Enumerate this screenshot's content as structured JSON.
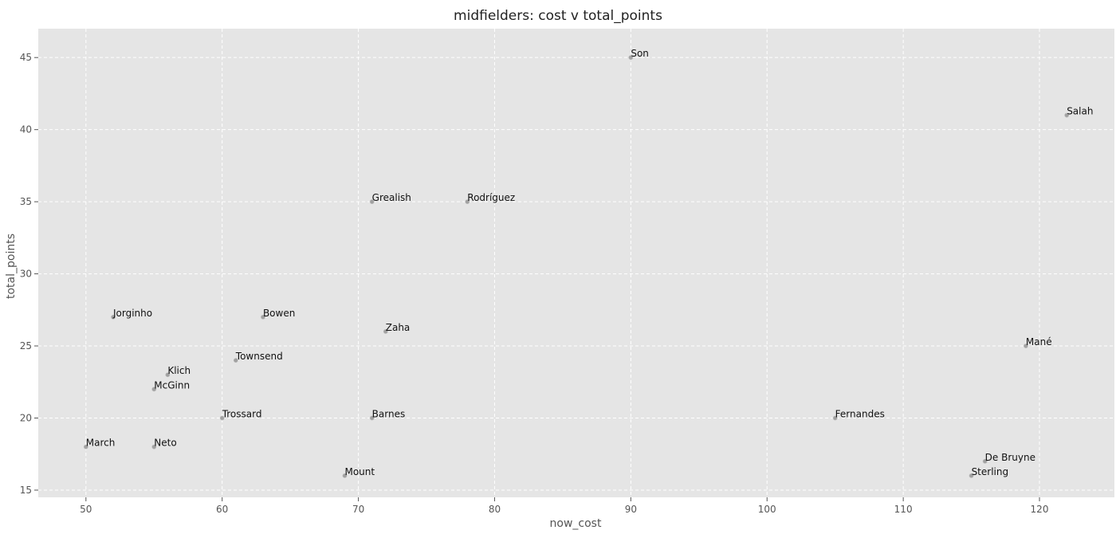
{
  "chart_data": {
    "type": "scatter",
    "title": "midfielders: cost v total_points",
    "xlabel": "now_cost",
    "ylabel": "total_points",
    "xlim": [
      46.5,
      125.5
    ],
    "ylim": [
      14.5,
      47
    ],
    "xticks": [
      50,
      60,
      70,
      80,
      90,
      100,
      110,
      120
    ],
    "yticks": [
      15,
      20,
      25,
      30,
      35,
      40,
      45
    ],
    "grid": true,
    "background_color": "#e5e5e5",
    "point_color": "#8a8a8a",
    "points": [
      {
        "label": "Son",
        "x": 90,
        "y": 45
      },
      {
        "label": "Salah",
        "x": 122,
        "y": 41
      },
      {
        "label": "Grealish",
        "x": 71,
        "y": 35
      },
      {
        "label": "Rodríguez",
        "x": 78,
        "y": 35
      },
      {
        "label": "Jorginho",
        "x": 52,
        "y": 27
      },
      {
        "label": "Bowen",
        "x": 63,
        "y": 27
      },
      {
        "label": "Zaha",
        "x": 72,
        "y": 26
      },
      {
        "label": "Mané",
        "x": 119,
        "y": 25
      },
      {
        "label": "Townsend",
        "x": 61,
        "y": 24
      },
      {
        "label": "Klich",
        "x": 56,
        "y": 23
      },
      {
        "label": "McGinn",
        "x": 55,
        "y": 22
      },
      {
        "label": "Trossard",
        "x": 60,
        "y": 20
      },
      {
        "label": "Barnes",
        "x": 71,
        "y": 20
      },
      {
        "label": "Fernandes",
        "x": 105,
        "y": 20
      },
      {
        "label": "March",
        "x": 50,
        "y": 18
      },
      {
        "label": "Neto",
        "x": 55,
        "y": 18
      },
      {
        "label": "De Bruyne",
        "x": 116,
        "y": 17
      },
      {
        "label": "Mount",
        "x": 69,
        "y": 16
      },
      {
        "label": "Sterling",
        "x": 115,
        "y": 16
      }
    ]
  }
}
